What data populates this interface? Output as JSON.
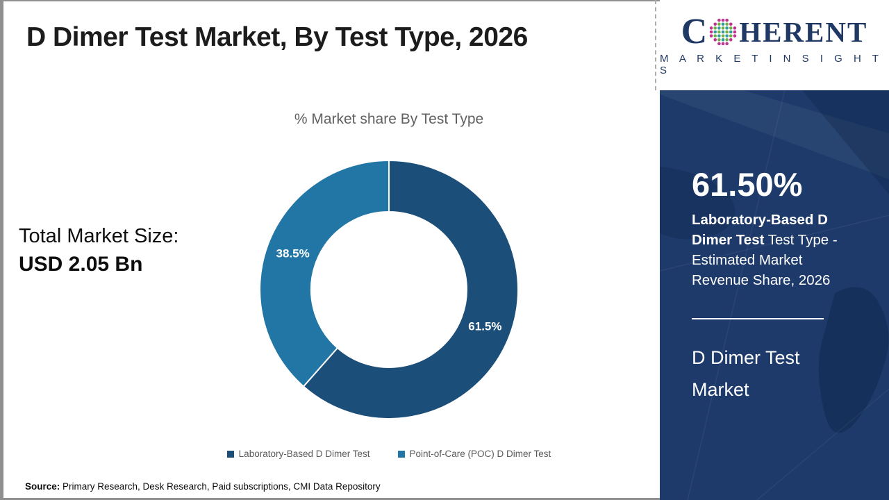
{
  "header": {
    "title": "D Dimer Test Market, By Test Type, 2026"
  },
  "chart_data": {
    "type": "pie",
    "donut": true,
    "title": "% Market share By Test Type",
    "categories": [
      "Laboratory-Based D Dimer Test",
      "Point-of-Care (POC) D Dimer Test"
    ],
    "values": [
      61.5,
      38.5
    ],
    "slice_labels": [
      "61.5%",
      "38.5%"
    ],
    "colors": [
      "#1b4e79",
      "#2176a5"
    ],
    "start_angle_deg": 0,
    "direction": "clockwise",
    "legend_position": "bottom"
  },
  "left_panel": {
    "total_label": "Total Market Size:",
    "total_value": "USD 2.05 Bn"
  },
  "source": {
    "prefix": "Source:",
    "text": " Primary Research, Desk Research, Paid subscriptions, CMI Data Repository"
  },
  "sidebar": {
    "logo": {
      "icon": "coherent-globe-icon",
      "word_first_letter": "C",
      "word_rest": "HERENT",
      "subline": "M A R K E T   I N S I G H T S",
      "brand_color": "#1f3864",
      "globe_dot_colors": [
        "#c0338f",
        "#2f9e9b",
        "#6fb145"
      ]
    },
    "stat_value": "61.50%",
    "stat_bold": "Laboratory-Based D Dimer Test",
    "stat_rest": " Test Type - Estimated Market Revenue Share, 2026",
    "market_name": "D Dimer Test Market",
    "panel_color": "#1d3a6a"
  }
}
